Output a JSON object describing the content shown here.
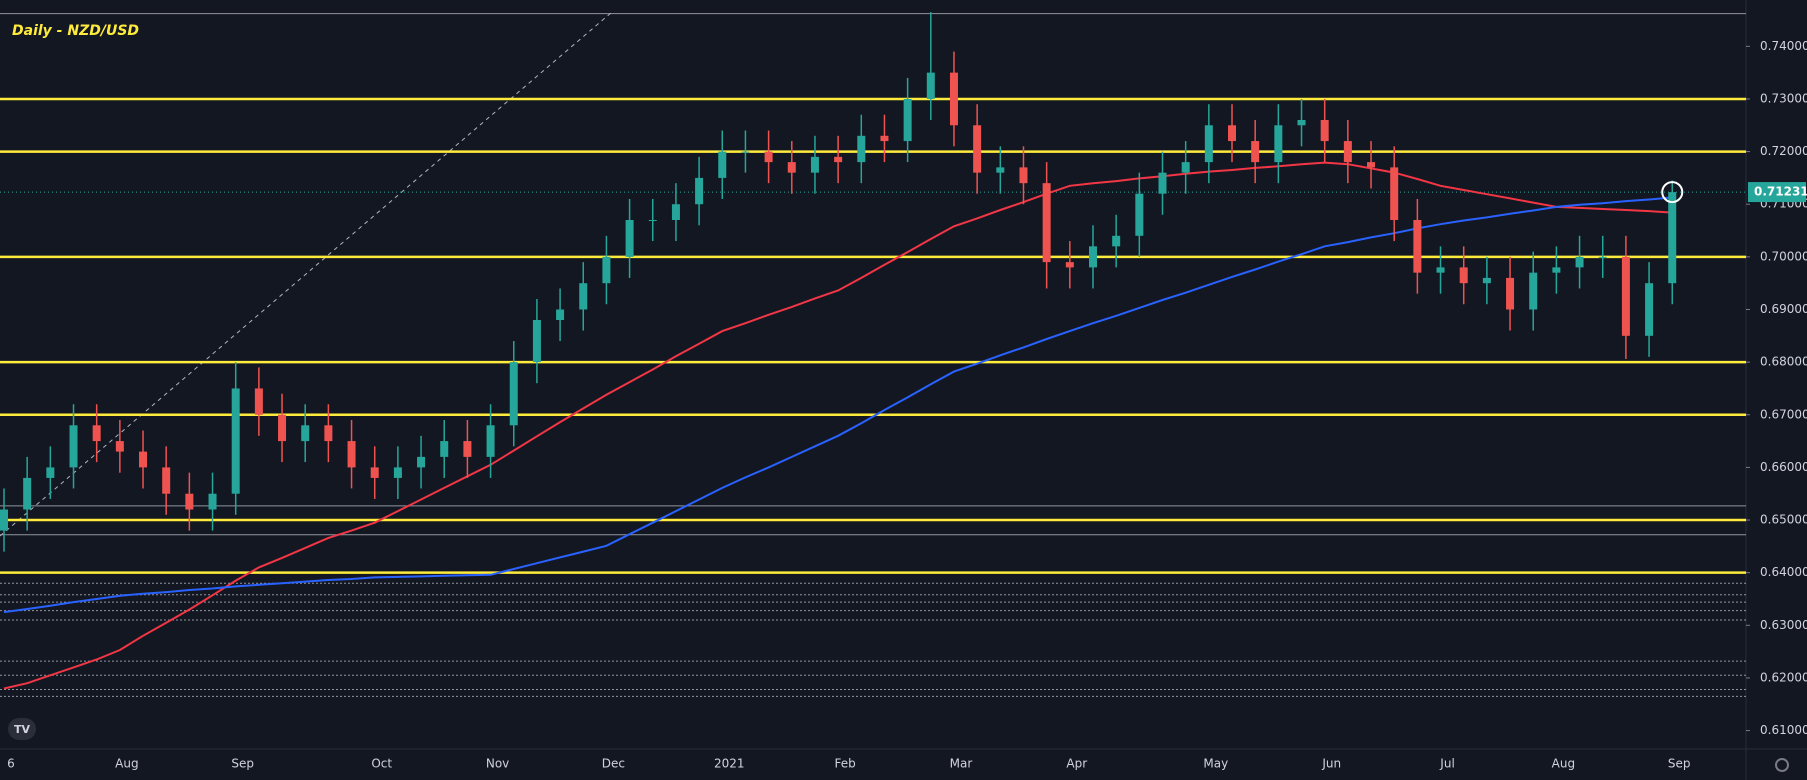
{
  "chart_data": {
    "type": "candlestick",
    "title": "Daily - NZD/USD",
    "categories": [
      "6",
      null,
      null,
      null,
      null,
      "Aug",
      null,
      null,
      null,
      null,
      "Sep",
      null,
      null,
      null,
      null,
      null,
      "Oct",
      null,
      null,
      null,
      null,
      "Nov",
      null,
      null,
      null,
      null,
      "Dec",
      null,
      null,
      null,
      null,
      "2021",
      null,
      null,
      null,
      null,
      "Feb",
      null,
      null,
      null,
      null,
      "Mar",
      null,
      null,
      null,
      null,
      "Apr",
      null,
      null,
      null,
      null,
      null,
      "May",
      null,
      null,
      null,
      null,
      "Jun",
      null,
      null,
      null,
      null,
      "Jul",
      null,
      null,
      null,
      null,
      "Aug",
      null,
      null,
      null,
      null,
      "Sep"
    ],
    "open": [
      0.648,
      0.652,
      0.658,
      0.66,
      0.668,
      0.665,
      0.663,
      0.66,
      0.655,
      0.652,
      0.655,
      0.675,
      0.67,
      0.665,
      0.668,
      0.665,
      0.66,
      0.658,
      0.66,
      0.662,
      0.665,
      0.662,
      0.668,
      0.68,
      0.688,
      0.69,
      0.695,
      0.7,
      0.707,
      0.707,
      0.71,
      0.715,
      0.72,
      0.72,
      0.718,
      0.716,
      0.719,
      0.718,
      0.723,
      0.722,
      0.73,
      0.735,
      0.725,
      0.716,
      0.717,
      0.714,
      0.699,
      0.698,
      0.702,
      0.704,
      0.712,
      0.716,
      0.718,
      0.725,
      0.722,
      0.718,
      0.725,
      0.726,
      0.722,
      0.718,
      0.717,
      0.707,
      0.697,
      0.698,
      0.695,
      0.696,
      0.69,
      0.697,
      0.698,
      0.7,
      0.7,
      0.685,
      0.695
    ],
    "high": [
      0.656,
      0.662,
      0.664,
      0.672,
      0.672,
      0.669,
      0.667,
      0.664,
      0.659,
      0.659,
      0.68,
      0.679,
      0.674,
      0.672,
      0.672,
      0.669,
      0.664,
      0.664,
      0.666,
      0.669,
      0.669,
      0.672,
      0.684,
      0.692,
      0.694,
      0.699,
      0.704,
      0.711,
      0.711,
      0.714,
      0.719,
      0.724,
      0.724,
      0.724,
      0.722,
      0.723,
      0.723,
      0.727,
      0.727,
      0.734,
      0.7465,
      0.739,
      0.729,
      0.721,
      0.721,
      0.718,
      0.703,
      0.706,
      0.708,
      0.716,
      0.72,
      0.722,
      0.729,
      0.729,
      0.726,
      0.729,
      0.73,
      0.73,
      0.726,
      0.722,
      0.721,
      0.711,
      0.702,
      0.702,
      0.7,
      0.7,
      0.701,
      0.702,
      0.704,
      0.704,
      0.704,
      0.699,
      0.7145
    ],
    "low": [
      0.644,
      0.648,
      0.654,
      0.656,
      0.661,
      0.659,
      0.656,
      0.651,
      0.648,
      0.648,
      0.651,
      0.666,
      0.661,
      0.661,
      0.661,
      0.656,
      0.654,
      0.654,
      0.656,
      0.658,
      0.658,
      0.658,
      0.664,
      0.676,
      0.684,
      0.686,
      0.691,
      0.696,
      0.703,
      0.703,
      0.706,
      0.711,
      0.716,
      0.714,
      0.712,
      0.712,
      0.714,
      0.714,
      0.718,
      0.718,
      0.726,
      0.721,
      0.712,
      0.712,
      0.71,
      0.694,
      0.694,
      0.694,
      0.698,
      0.7,
      0.708,
      0.712,
      0.714,
      0.718,
      0.714,
      0.714,
      0.721,
      0.718,
      0.714,
      0.713,
      0.703,
      0.693,
      0.693,
      0.691,
      0.691,
      0.686,
      0.686,
      0.693,
      0.694,
      0.696,
      0.6806,
      0.681,
      0.691
    ],
    "close": [
      0.652,
      0.658,
      0.66,
      0.668,
      0.665,
      0.663,
      0.66,
      0.655,
      0.652,
      0.655,
      0.675,
      0.67,
      0.665,
      0.668,
      0.665,
      0.66,
      0.658,
      0.66,
      0.662,
      0.665,
      0.662,
      0.668,
      0.68,
      0.688,
      0.69,
      0.695,
      0.7,
      0.707,
      0.707,
      0.71,
      0.715,
      0.72,
      0.72,
      0.718,
      0.716,
      0.719,
      0.718,
      0.723,
      0.722,
      0.73,
      0.735,
      0.725,
      0.716,
      0.717,
      0.714,
      0.699,
      0.698,
      0.702,
      0.704,
      0.712,
      0.716,
      0.718,
      0.725,
      0.722,
      0.718,
      0.725,
      0.726,
      0.722,
      0.718,
      0.717,
      0.707,
      0.697,
      0.698,
      0.695,
      0.696,
      0.69,
      0.697,
      0.698,
      0.7,
      0.7,
      0.685,
      0.695,
      0.7123
    ],
    "up_color": "#26a69a",
    "down_color": "#ef5350",
    "moving_averages": [
      {
        "color": "#f23645",
        "values": [
          0.618,
          0.619,
          0.6205,
          0.622,
          0.6235,
          0.6253,
          0.628,
          0.6305,
          0.633,
          0.6357,
          0.6385,
          0.641,
          0.6428,
          0.6447,
          0.6466,
          0.648,
          0.6495,
          0.6517,
          0.6539,
          0.6561,
          0.6583,
          0.6605,
          0.6632,
          0.6659,
          0.6686,
          0.6712,
          0.6738,
          0.6762,
          0.6786,
          0.6811,
          0.6835,
          0.6859,
          0.6874,
          0.689,
          0.6905,
          0.6921,
          0.6936,
          0.696,
          0.6985,
          0.7009,
          0.7034,
          0.7058,
          0.7073,
          0.7089,
          0.7104,
          0.712,
          0.7135,
          0.714,
          0.7144,
          0.7149,
          0.7153,
          0.7158,
          0.7162,
          0.7165,
          0.7169,
          0.7172,
          0.7176,
          0.7179,
          0.7176,
          0.7168,
          0.716,
          0.7148,
          0.7135,
          0.7127,
          0.7119,
          0.7111,
          0.7103,
          0.7095,
          0.7093,
          0.7091,
          0.7089,
          0.7087,
          0.7084
        ]
      },
      {
        "color": "#2962ff",
        "values": [
          0.6325,
          0.6331,
          0.6337,
          0.6344,
          0.635,
          0.6356,
          0.636,
          0.6363,
          0.6367,
          0.637,
          0.6374,
          0.6377,
          0.638,
          0.6383,
          0.6386,
          0.6388,
          0.6391,
          0.6392,
          0.6393,
          0.6394,
          0.6395,
          0.6396,
          0.6407,
          0.6418,
          0.6429,
          0.644,
          0.6451,
          0.6473,
          0.6495,
          0.6517,
          0.6539,
          0.6561,
          0.6581,
          0.66,
          0.662,
          0.664,
          0.666,
          0.6684,
          0.6709,
          0.6733,
          0.6758,
          0.6782,
          0.6797,
          0.6813,
          0.6828,
          0.6844,
          0.6859,
          0.6874,
          0.6888,
          0.6903,
          0.6918,
          0.6932,
          0.6947,
          0.6962,
          0.6976,
          0.6991,
          0.7005,
          0.702,
          0.7028,
          0.7037,
          0.7045,
          0.7054,
          0.7062,
          0.7069,
          0.7075,
          0.7082,
          0.7088,
          0.7095,
          0.7099,
          0.7102,
          0.7106,
          0.7109,
          0.7113
        ]
      }
    ],
    "levels": {
      "color": "#ffeb3b",
      "values": [
        0.73,
        0.72,
        0.7,
        0.68,
        0.67,
        0.65,
        0.64
      ]
    },
    "minor_levels": {
      "color": "#b2b5be",
      "values": [
        0.7462,
        0.6527,
        0.6472,
        0.638,
        0.6358,
        0.6344,
        0.6328,
        0.631,
        0.6232,
        0.6205,
        0.6178,
        0.6165
      ]
    },
    "last_price": {
      "value": 0.71231,
      "label": "0.71231"
    },
    "ylim": [
      0.6065,
      0.7488
    ],
    "yticks": [
      {
        "value": 0.74,
        "label": "0.74000"
      },
      {
        "value": 0.73,
        "label": "0.73000"
      },
      {
        "value": 0.72,
        "label": "0.72000"
      },
      {
        "value": 0.71,
        "label": "0.71000"
      },
      {
        "value": 0.7,
        "label": "0.70000"
      },
      {
        "value": 0.69,
        "label": "0.69000"
      },
      {
        "value": 0.68,
        "label": "0.68000"
      },
      {
        "value": 0.67,
        "label": "0.67000"
      },
      {
        "value": 0.66,
        "label": "0.66000"
      },
      {
        "value": 0.65,
        "label": "0.65000"
      },
      {
        "value": 0.64,
        "label": "0.64000"
      },
      {
        "value": 0.63,
        "label": "0.63000"
      },
      {
        "value": 0.62,
        "label": "0.62000"
      },
      {
        "value": 0.61,
        "label": "0.61000"
      }
    ]
  }
}
